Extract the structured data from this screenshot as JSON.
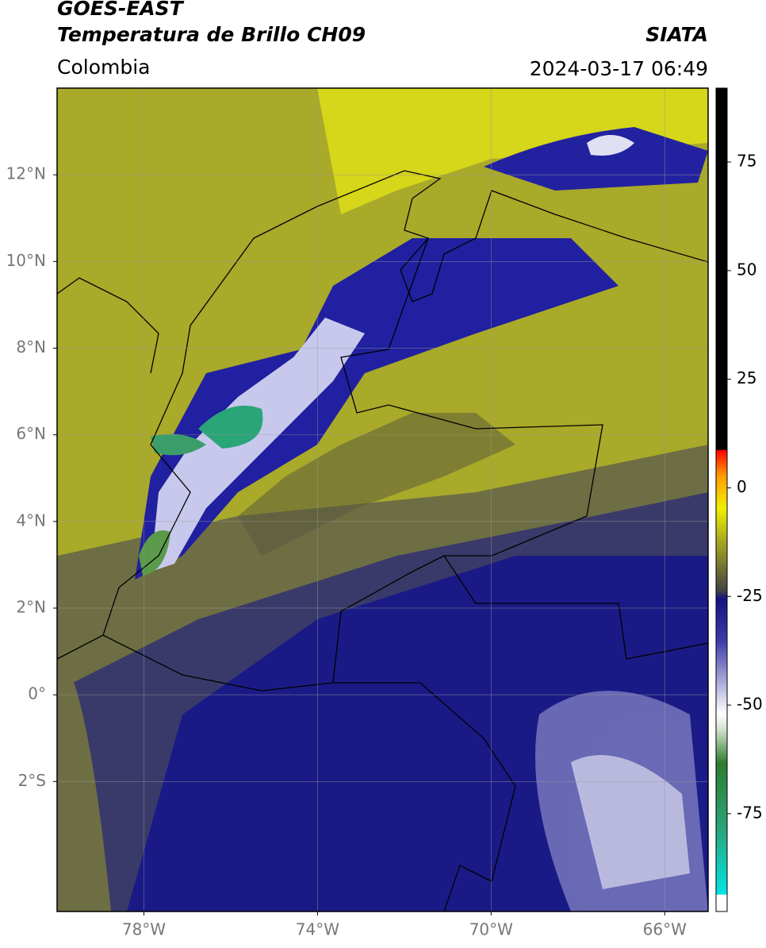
{
  "header": {
    "title_line1": "GOES-EAST",
    "title_line2": "Temperatura de Brillo CH09",
    "source": "SIATA",
    "region": "Colombia",
    "datetime": "2024-03-17 06:49"
  },
  "map": {
    "xlim": [
      -80,
      -65
    ],
    "ylim": [
      -5,
      14
    ],
    "xticks": [
      {
        "value": -78,
        "label": "78°W"
      },
      {
        "value": -74,
        "label": "74°W"
      },
      {
        "value": -70,
        "label": "70°W"
      },
      {
        "value": -66,
        "label": "66°W"
      }
    ],
    "yticks": [
      {
        "value": 12,
        "label": "12°N"
      },
      {
        "value": 10,
        "label": "10°N"
      },
      {
        "value": 8,
        "label": "8°N"
      },
      {
        "value": 6,
        "label": "6°N"
      },
      {
        "value": 4,
        "label": "4°N"
      },
      {
        "value": 2,
        "label": "2°N"
      },
      {
        "value": 0,
        "label": "0°"
      },
      {
        "value": -2,
        "label": "2°S"
      }
    ],
    "grid": true
  },
  "colorbar": {
    "lim": [
      -97.5,
      92
    ],
    "ticks": [
      75,
      50,
      25,
      0,
      -25,
      -50,
      -75
    ]
  }
}
